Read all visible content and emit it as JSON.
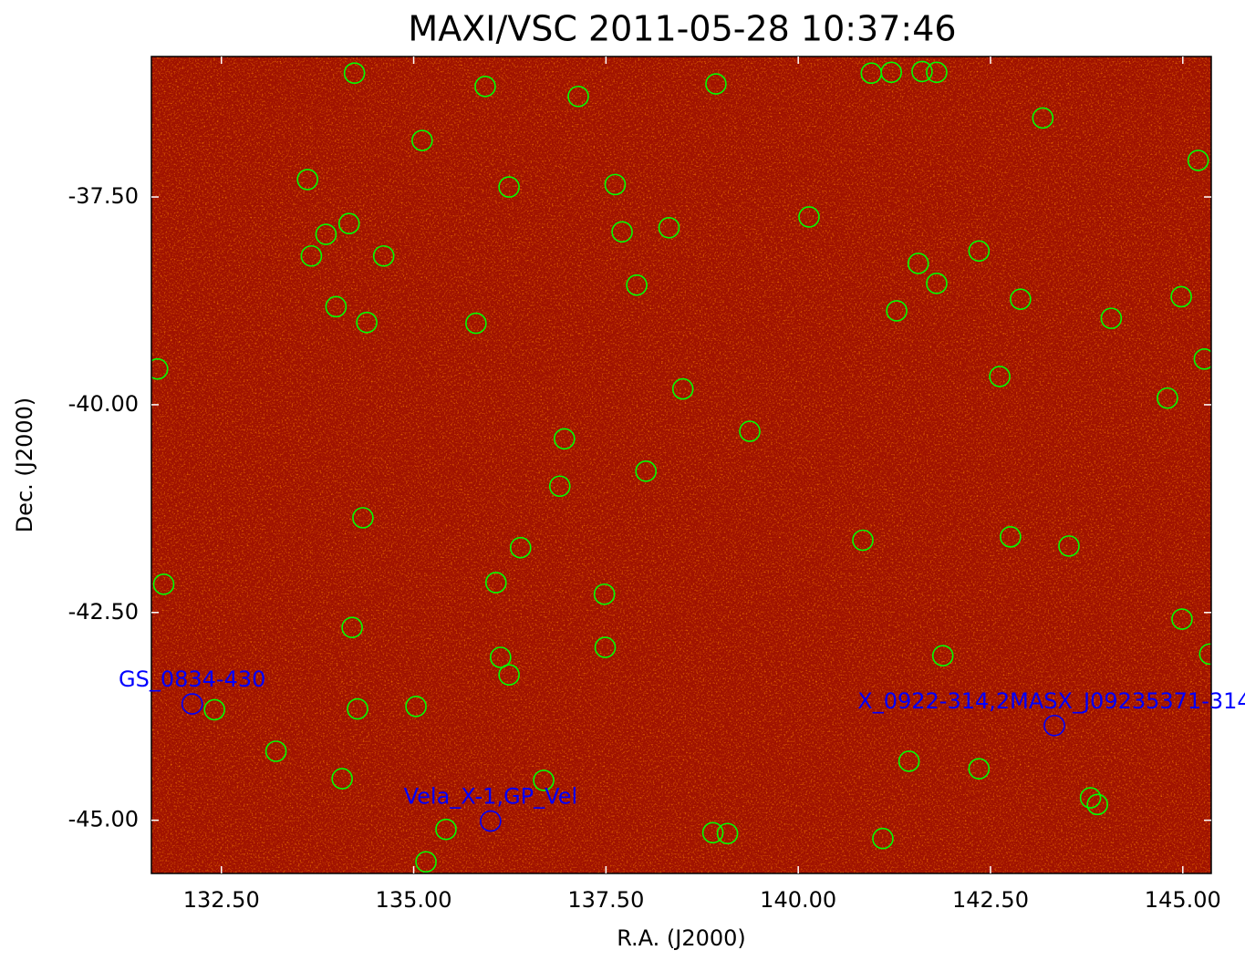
{
  "chart_data": {
    "type": "scatter",
    "title": "MAXI/VSC 2011-05-28 10:37:46",
    "xlabel": "R.A. (J2000)",
    "ylabel": "Dec. (J2000)",
    "xlim": [
      131.59,
      145.37
    ],
    "ylim": [
      -45.64,
      -35.81
    ],
    "xticks": [
      {
        "value": 132.5,
        "label": "132.50"
      },
      {
        "value": 135,
        "label": "135.00"
      },
      {
        "value": 137.5,
        "label": "137.50"
      },
      {
        "value": 140,
        "label": "140.00"
      },
      {
        "value": 142.5,
        "label": "142.50"
      },
      {
        "value": 145,
        "label": "145.00"
      }
    ],
    "yticks": [
      {
        "value": -37.5,
        "label": "-37.50"
      },
      {
        "value": -40,
        "label": "-40.00"
      },
      {
        "value": -42.5,
        "label": "-42.50"
      },
      {
        "value": -45,
        "label": "-45.00"
      }
    ],
    "series": [
      {
        "color": "#00ff00",
        "x": [
          134.23,
          135.93,
          137.14,
          138.93,
          140.95,
          141.21,
          141.61,
          141.8,
          143.18,
          135.11,
          145.2,
          133.62,
          136.24,
          137.62,
          140.14,
          134.16,
          133.86,
          137.71,
          138.32,
          133.67,
          134.61,
          142.35,
          141.56,
          141.8,
          137.9,
          133.99,
          142.89,
          144.98,
          134.39,
          135.81,
          141.28,
          144.07,
          131.67,
          145.28,
          142.62,
          138.5,
          144.8,
          139.37,
          136.96,
          138.02,
          136.9,
          134.34,
          140.84,
          142.76,
          143.52,
          136.39,
          131.75,
          136.07,
          137.48,
          144.99,
          134.2,
          137.49,
          141.88,
          145.35,
          136.13,
          136.24,
          132.41,
          134.27,
          135.03,
          133.21,
          141.44,
          142.35,
          134.07,
          136.69,
          143.8,
          143.89,
          135.42,
          138.89,
          139.08,
          141.1,
          135.16
        ],
        "y": [
          -36.01,
          -36.17,
          -36.29,
          -36.14,
          -36.01,
          -36.0,
          -35.99,
          -36.0,
          -36.55,
          -36.82,
          -37.06,
          -37.29,
          -37.38,
          -37.35,
          -37.74,
          -37.82,
          -37.95,
          -37.92,
          -37.87,
          -38.21,
          -38.21,
          -38.15,
          -38.3,
          -38.54,
          -38.56,
          -38.82,
          -38.73,
          -38.7,
          -39.01,
          -39.02,
          -38.87,
          -38.96,
          -39.57,
          -39.45,
          -39.66,
          -39.81,
          -39.92,
          -40.32,
          -40.41,
          -40.8,
          -40.98,
          -41.36,
          -41.63,
          -41.59,
          -41.7,
          -41.72,
          -42.16,
          -42.14,
          -42.28,
          -42.58,
          -42.68,
          -42.92,
          -43.02,
          -43.0,
          -43.04,
          -43.25,
          -43.67,
          -43.66,
          -43.63,
          -44.17,
          -44.29,
          -44.38,
          -44.5,
          -44.52,
          -44.73,
          -44.81,
          -45.11,
          -45.15,
          -45.16,
          -45.22,
          -45.5
        ]
      }
    ],
    "annotations": [
      {
        "text": "GS_0834-430",
        "x": 132.12,
        "y": -43.6,
        "color": "#0000ff"
      },
      {
        "text": "Vela_X-1,GP_Vel",
        "x": 136.0,
        "y": -45.01,
        "color": "#0000ff"
      },
      {
        "text": "X_0922-314,2MASX_J09235371-314",
        "x": 143.33,
        "y": -43.86,
        "color": "#0000ff"
      }
    ]
  }
}
